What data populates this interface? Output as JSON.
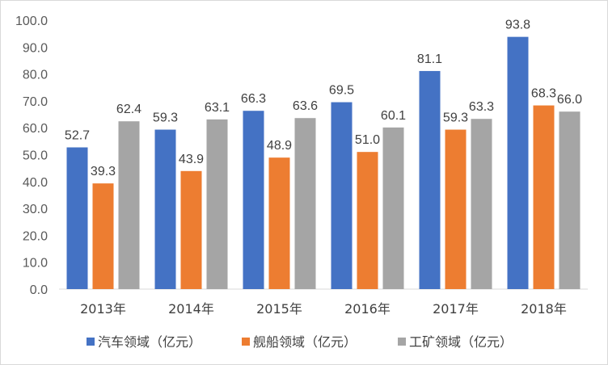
{
  "chart_data": {
    "type": "bar",
    "categories": [
      "2013年",
      "2014年",
      "2015年",
      "2016年",
      "2017年",
      "2018年"
    ],
    "series": [
      {
        "name": "汽车领域（亿元）",
        "color": "#4472c4",
        "values": [
          52.7,
          59.3,
          66.3,
          69.5,
          81.1,
          93.8
        ],
        "labels": [
          "52.7",
          "59.3",
          "66.3",
          "69.5",
          "81.1",
          "93.8"
        ]
      },
      {
        "name": "舰船领域（亿元）",
        "color": "#ed7d31",
        "values": [
          39.3,
          43.9,
          48.9,
          51.0,
          59.3,
          68.3
        ],
        "labels": [
          "39.3",
          "43.9",
          "48.9",
          "51.0",
          "59.3",
          "68.3"
        ]
      },
      {
        "name": "工矿领域（亿元）",
        "color": "#a5a5a5",
        "values": [
          62.4,
          63.1,
          63.6,
          60.1,
          63.3,
          66.0
        ],
        "labels": [
          "62.4",
          "63.1",
          "63.6",
          "60.1",
          "63.3",
          "66.0"
        ]
      }
    ],
    "ylim": [
      0,
      100
    ],
    "yticks": [
      "0.0",
      "10.0",
      "20.0",
      "30.0",
      "40.0",
      "50.0",
      "60.0",
      "70.0",
      "80.0",
      "90.0",
      "100.0"
    ],
    "grid": false,
    "legend": "bottom"
  }
}
